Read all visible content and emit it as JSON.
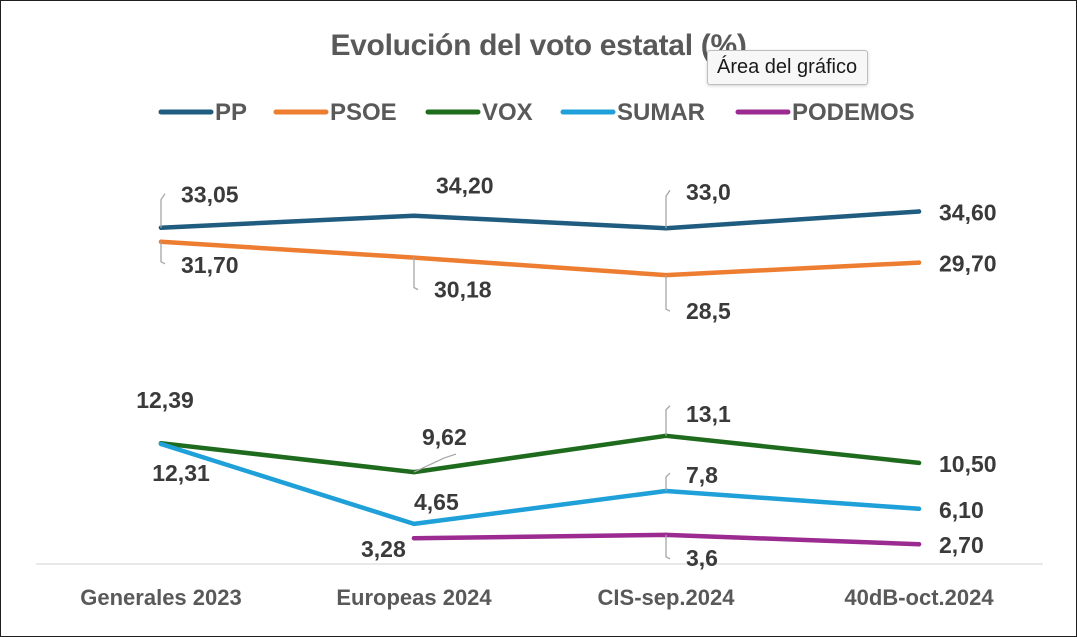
{
  "tooltip": "Área del gráfico",
  "chart_data": {
    "type": "line",
    "title": "Evolución del voto estatal (%)",
    "categories": [
      "Generales 2023",
      "Europeas 2024",
      "CIS-sep.2024",
      "40dB-oct.2024"
    ],
    "xlabel": "",
    "ylabel": "",
    "ylim": [
      0,
      40
    ],
    "grid": false,
    "legend_position": "top",
    "series": [
      {
        "name": "PP",
        "color": "#1f5c80",
        "values": [
          33.05,
          34.2,
          33.0,
          34.6
        ],
        "labels": [
          "33,05",
          "34,20",
          "33,0",
          "34,60"
        ]
      },
      {
        "name": "PSOE",
        "color": "#ed7d31",
        "values": [
          31.7,
          30.18,
          28.5,
          29.7
        ],
        "labels": [
          "31,70",
          "30,18",
          "28,5",
          "29,70"
        ]
      },
      {
        "name": "VOX",
        "color": "#1e6b1e",
        "values": [
          12.39,
          9.62,
          13.1,
          10.5
        ],
        "labels": [
          "12,39",
          "9,62",
          "13,1",
          "10,50"
        ]
      },
      {
        "name": "SUMAR",
        "color": "#1fa0d8",
        "values": [
          12.31,
          4.65,
          7.8,
          6.1
        ],
        "labels": [
          "12,31",
          "4,65",
          "7,8",
          "6,10"
        ]
      },
      {
        "name": "PODEMOS",
        "color": "#9b2a91",
        "values": [
          null,
          3.28,
          3.6,
          2.7
        ],
        "labels": [
          null,
          "3,28",
          "3,6",
          "2,70"
        ]
      }
    ]
  }
}
